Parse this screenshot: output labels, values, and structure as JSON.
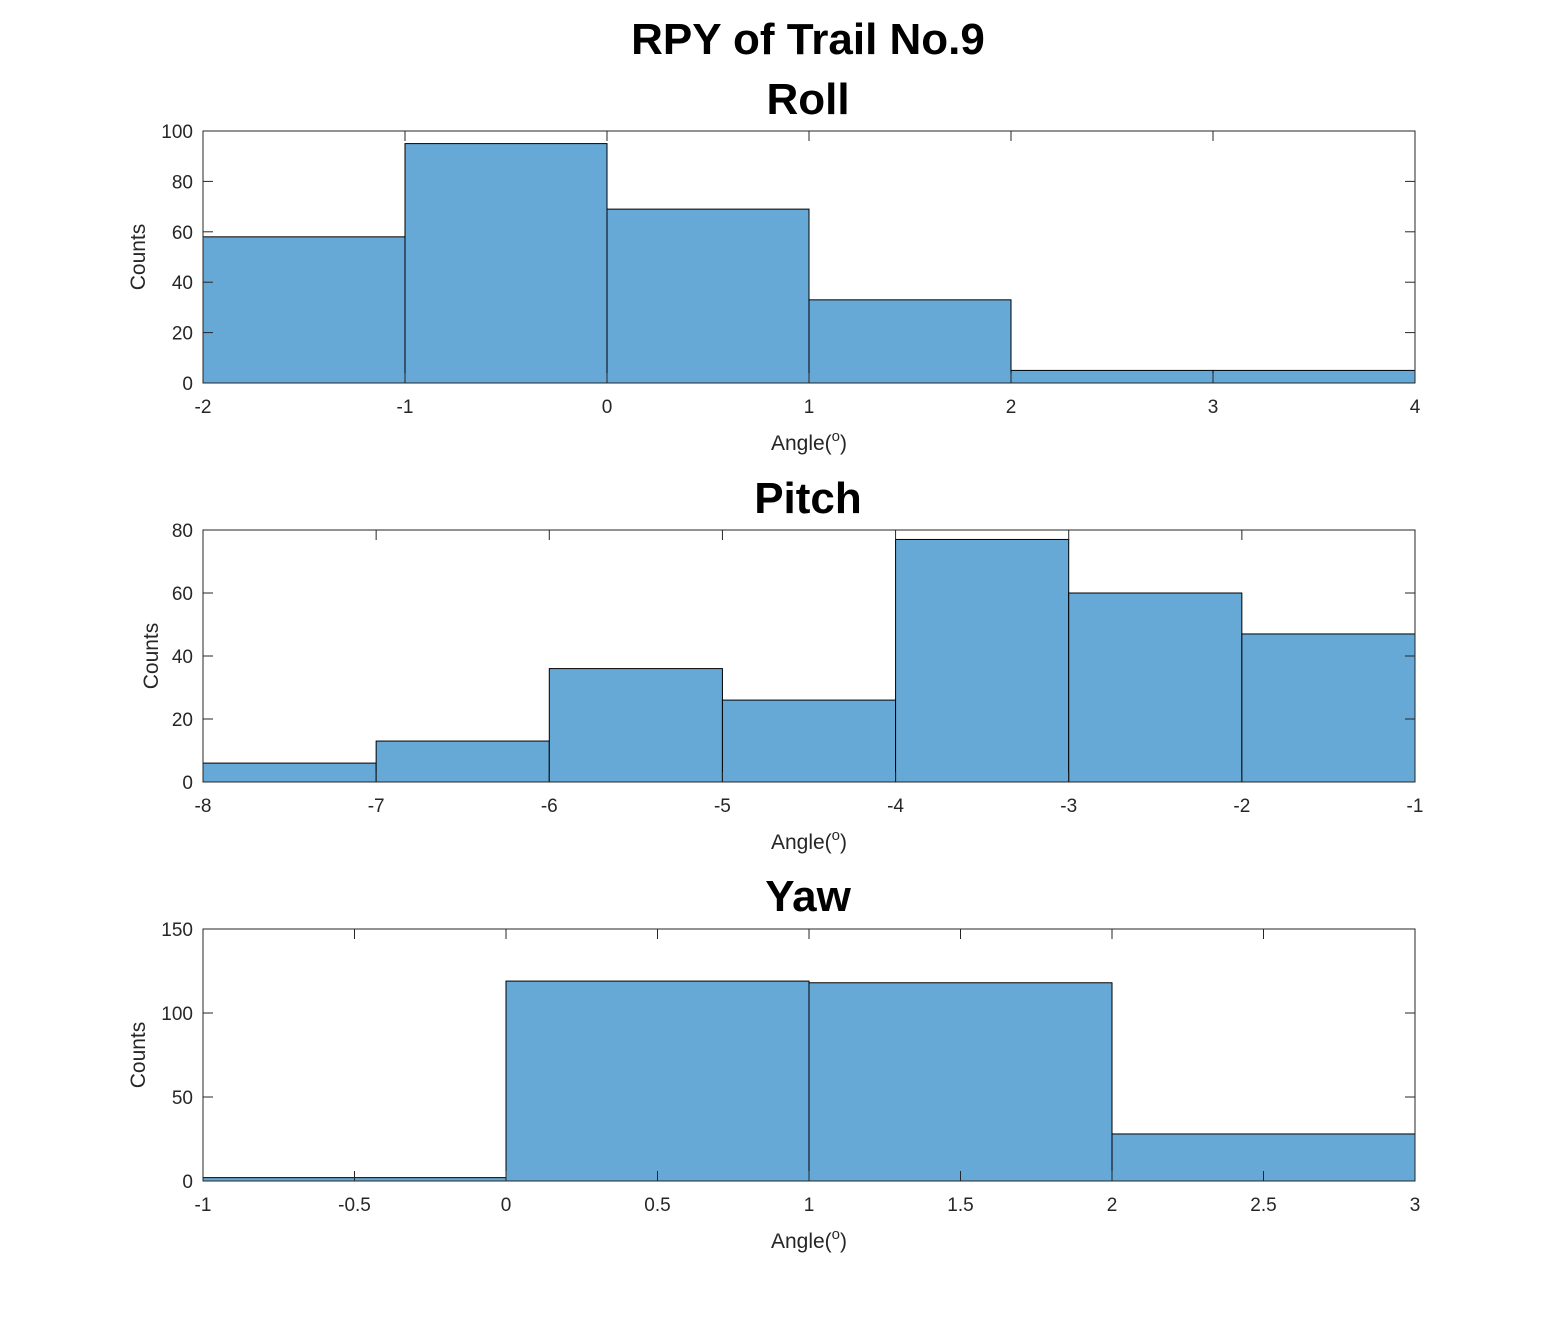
{
  "figure": {
    "suptitle": "RPY of Trail No.9",
    "bar_color": "#67A9D6",
    "edge_color": "#000000"
  },
  "chart_data": [
    {
      "type": "bar",
      "subtype": "histogram",
      "title": "Roll",
      "xlabel": "Angle",
      "xlabel_superscript": "o",
      "xlabel_suffix": ")",
      "ylabel": "Counts",
      "xlim": [
        -2,
        4
      ],
      "ylim": [
        0,
        100
      ],
      "xticks": [
        "-2",
        "-1",
        "0",
        "1",
        "2",
        "3",
        "4"
      ],
      "yticks": [
        "0",
        "20",
        "40",
        "60",
        "80",
        "100"
      ],
      "bin_edges": [
        -2,
        -1,
        0,
        1,
        2,
        3,
        4
      ],
      "values": [
        58,
        95,
        69,
        33,
        5,
        5
      ],
      "grid": false
    },
    {
      "type": "bar",
      "subtype": "histogram",
      "title": "Pitch",
      "xlabel": "Angle",
      "xlabel_superscript": "o",
      "xlabel_suffix": ")",
      "ylabel": "Counts",
      "xlim": [
        -8,
        -1
      ],
      "ylim": [
        0,
        80
      ],
      "xticks": [
        "-8",
        "-7",
        "-6",
        "-5",
        "-4",
        "-3",
        "-2",
        "-1"
      ],
      "yticks": [
        "0",
        "20",
        "40",
        "60",
        "80"
      ],
      "bin_edges": [
        -8,
        -7,
        -6,
        -5,
        -4,
        -3,
        -2,
        -1
      ],
      "values": [
        6,
        13,
        36,
        26,
        77,
        60,
        47
      ],
      "grid": false
    },
    {
      "type": "bar",
      "subtype": "histogram",
      "title": "Yaw",
      "xlabel": "Angle",
      "xlabel_superscript": "o",
      "xlabel_suffix": ")",
      "ylabel": "Counts",
      "xlim": [
        -1,
        3
      ],
      "ylim": [
        0,
        150
      ],
      "xticks": [
        "-1",
        "-0.5",
        "0",
        "0.5",
        "1",
        "1.5",
        "2",
        "2.5",
        "3"
      ],
      "yticks": [
        "0",
        "50",
        "100",
        "150"
      ],
      "bin_edges": [
        -1,
        0,
        1,
        2,
        3
      ],
      "values": [
        2,
        119,
        118,
        28
      ],
      "grid": false
    }
  ]
}
